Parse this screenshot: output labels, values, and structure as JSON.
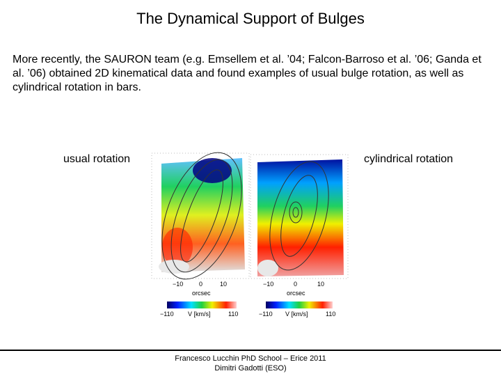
{
  "slide": {
    "title": "The Dynamical Support of Bulges",
    "body": "More recently, the SAURON team (e.g. Emsellem et al. ’04; Falcon-Barroso et al. ’06; Ganda et al. ’06) obtained 2D kinematical data and found examples of usual bulge rotation, as well as cylindrical rotation in bars.",
    "label_left": "usual rotation",
    "label_right": "cylindrical rotation",
    "figures": [
      {
        "xticks": [
          "−10",
          "0",
          "10"
        ],
        "xlabel": "orcsec",
        "cbar_min": "−110",
        "cbar_label": "V [km/s]",
        "cbar_max": "110"
      },
      {
        "xticks": [
          "−10",
          "0",
          "10"
        ],
        "xlabel": "orcsec",
        "cbar_min": "−110",
        "cbar_label": "V [km/s]",
        "cbar_max": "110"
      }
    ],
    "footer": [
      "Francesco Lucchin PhD School – Erice 2011",
      "Dimitri Gadotti (ESO)"
    ]
  }
}
